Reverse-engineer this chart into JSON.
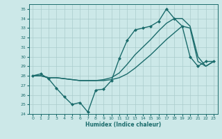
{
  "xlabel": "Humidex (Indice chaleur)",
  "background_color": "#cce8e8",
  "grid_color": "#aacccc",
  "line_color": "#1a6b6b",
  "xlim": [
    -0.5,
    23.5
  ],
  "ylim": [
    24,
    35.5
  ],
  "yticks": [
    24,
    25,
    26,
    27,
    28,
    29,
    30,
    31,
    32,
    33,
    34,
    35
  ],
  "xticks": [
    0,
    1,
    2,
    3,
    4,
    5,
    6,
    7,
    8,
    9,
    10,
    11,
    12,
    13,
    14,
    15,
    16,
    17,
    18,
    19,
    20,
    21,
    22,
    23
  ],
  "series": [
    {
      "x": [
        0,
        1,
        2,
        3,
        4,
        5,
        6,
        7,
        8,
        9,
        10,
        11,
        12,
        13,
        14,
        15,
        16,
        17,
        18,
        19,
        20,
        21,
        22,
        23
      ],
      "y": [
        28.0,
        28.2,
        27.7,
        26.7,
        25.8,
        25.0,
        25.2,
        24.2,
        26.5,
        26.6,
        27.5,
        29.8,
        31.7,
        32.8,
        33.0,
        33.2,
        33.7,
        35.0,
        34.0,
        33.2,
        30.0,
        29.0,
        29.5,
        29.5
      ],
      "marker": "D",
      "markersize": 2.0,
      "linewidth": 1.0
    },
    {
      "x": [
        0,
        1,
        2,
        3,
        4,
        5,
        6,
        7,
        8,
        9,
        10,
        11,
        12,
        13,
        14,
        15,
        16,
        17,
        18,
        19,
        20,
        21,
        22,
        23
      ],
      "y": [
        28.0,
        28.0,
        27.8,
        27.8,
        27.7,
        27.6,
        27.5,
        27.5,
        27.5,
        27.5,
        27.6,
        27.8,
        28.2,
        28.8,
        29.5,
        30.2,
        31.0,
        31.8,
        32.5,
        33.2,
        33.0,
        29.5,
        29.0,
        29.5
      ],
      "marker": null,
      "markersize": 0,
      "linewidth": 1.0
    },
    {
      "x": [
        0,
        1,
        2,
        3,
        4,
        5,
        6,
        7,
        8,
        9,
        10,
        11,
        12,
        13,
        14,
        15,
        16,
        17,
        18,
        19,
        20,
        21,
        22,
        23
      ],
      "y": [
        28.0,
        28.0,
        27.8,
        27.8,
        27.7,
        27.6,
        27.5,
        27.5,
        27.5,
        27.6,
        27.8,
        28.3,
        29.2,
        30.2,
        31.0,
        31.8,
        32.7,
        33.5,
        34.0,
        34.0,
        33.2,
        30.0,
        29.0,
        29.5
      ],
      "marker": null,
      "markersize": 0,
      "linewidth": 1.0
    }
  ]
}
